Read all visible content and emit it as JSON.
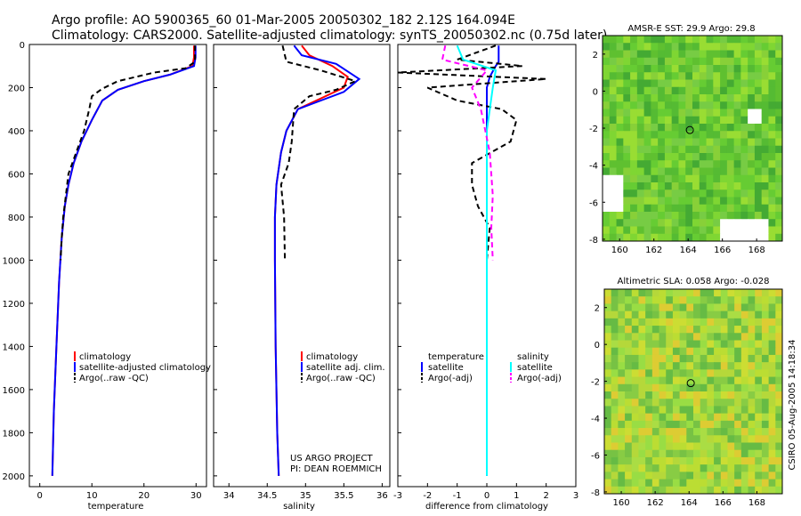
{
  "header": {
    "line1": "Argo profile: AO 5900365_60 01-Mar-2005 20050302_182 2.12S 164.094E",
    "line2": "Climatology: CARS2000. Satellite-adjusted climatology: synTS_20050302.nc (0.75d later)"
  },
  "colors": {
    "climatology": "#ff0000",
    "satellite": "#0000ff",
    "argo": "#000000",
    "salinity_sat": "#00ffff",
    "salinity_argo": "#ff00ff"
  },
  "credits": {
    "project": "US ARGO PROJECT",
    "pi": "PI: DEAN ROEMMICH",
    "stamp": "CSIRO 05-Aug-2005 14:18:34"
  },
  "chart_data": [
    {
      "id": "temperature",
      "type": "line",
      "xlabel": "temperature",
      "xlim": [
        -2,
        32
      ],
      "ylim": [
        0,
        2050
      ],
      "xticks": [
        0,
        10,
        20,
        30
      ],
      "yticks": [
        0,
        200,
        400,
        600,
        800,
        1000,
        1200,
        1400,
        1600,
        1800,
        2000
      ],
      "legend": [
        "climatology",
        "satellite-adjusted climatology",
        "Argo(..raw -QC)"
      ],
      "series": [
        {
          "name": "climatology",
          "style": "solid",
          "color": "#ff0000",
          "points": [
            [
              29.6,
              5
            ],
            [
              29.6,
              60
            ],
            [
              29.3,
              100
            ],
            [
              25,
              140
            ],
            [
              20,
              170
            ],
            [
              15,
              210
            ],
            [
              12,
              260
            ],
            [
              10,
              350
            ],
            [
              8,
              450
            ],
            [
              6.5,
              550
            ],
            [
              5.5,
              650
            ],
            [
              4.8,
              750
            ],
            [
              4.2,
              900
            ],
            [
              3.7,
              1100
            ],
            [
              3.2,
              1400
            ],
            [
              2.7,
              1700
            ],
            [
              2.4,
              2000
            ]
          ]
        },
        {
          "name": "satellite",
          "style": "solid",
          "color": "#0000ff",
          "points": [
            [
              29.9,
              5
            ],
            [
              29.9,
              60
            ],
            [
              29.6,
              100
            ],
            [
              25,
              140
            ],
            [
              20,
              170
            ],
            [
              15,
              210
            ],
            [
              12,
              260
            ],
            [
              10,
              350
            ],
            [
              8,
              450
            ],
            [
              6.5,
              550
            ],
            [
              5.5,
              650
            ],
            [
              4.8,
              750
            ],
            [
              4.2,
              900
            ],
            [
              3.7,
              1100
            ],
            [
              3.2,
              1400
            ],
            [
              2.7,
              1700
            ],
            [
              2.4,
              2000
            ]
          ]
        },
        {
          "name": "argo",
          "style": "dashed",
          "color": "#000000",
          "points": [
            [
              29.8,
              5
            ],
            [
              29.8,
              80
            ],
            [
              28,
              110
            ],
            [
              22,
              130
            ],
            [
              15,
              170
            ],
            [
              12,
              205
            ],
            [
              10,
              240
            ],
            [
              9.5,
              300
            ],
            [
              8.5,
              400
            ],
            [
              7,
              500
            ],
            [
              5.5,
              600
            ],
            [
              5,
              700
            ],
            [
              4.5,
              800
            ],
            [
              4.2,
              900
            ],
            [
              4.0,
              1000
            ]
          ]
        }
      ]
    },
    {
      "id": "salinity",
      "type": "line",
      "xlabel": "salinity",
      "xlim": [
        33.8,
        36.1
      ],
      "ylim": [
        0,
        2050
      ],
      "xticks": [
        34,
        34.5,
        35,
        35.5,
        36
      ],
      "legend": [
        "climatology",
        "satellite adj. clim.",
        "Argo(..raw -QC)"
      ],
      "series": [
        {
          "name": "climatology",
          "style": "solid",
          "color": "#ff0000",
          "points": [
            [
              34.95,
              5
            ],
            [
              35.05,
              50
            ],
            [
              35.35,
              100
            ],
            [
              35.55,
              150
            ],
            [
              35.5,
              200
            ],
            [
              35.2,
              250
            ],
            [
              34.9,
              300
            ],
            [
              34.75,
              400
            ],
            [
              34.68,
              500
            ],
            [
              34.62,
              650
            ],
            [
              34.6,
              800
            ],
            [
              34.6,
              1000
            ],
            [
              34.61,
              1400
            ],
            [
              34.63,
              1800
            ],
            [
              34.65,
              2000
            ]
          ]
        },
        {
          "name": "satellite",
          "style": "solid",
          "color": "#0000ff",
          "points": [
            [
              34.85,
              5
            ],
            [
              34.95,
              50
            ],
            [
              35.4,
              90
            ],
            [
              35.7,
              160
            ],
            [
              35.5,
              220
            ],
            [
              35.2,
              260
            ],
            [
              34.9,
              300
            ],
            [
              34.75,
              400
            ],
            [
              34.68,
              500
            ],
            [
              34.62,
              650
            ],
            [
              34.6,
              800
            ],
            [
              34.6,
              1000
            ],
            [
              34.61,
              1400
            ],
            [
              34.63,
              1800
            ],
            [
              34.65,
              2000
            ]
          ]
        },
        {
          "name": "argo",
          "style": "dashed",
          "color": "#000000",
          "points": [
            [
              34.7,
              5
            ],
            [
              34.75,
              80
            ],
            [
              35.2,
              120
            ],
            [
              35.65,
              170
            ],
            [
              35.4,
              210
            ],
            [
              35.05,
              240
            ],
            [
              34.85,
              300
            ],
            [
              34.82,
              450
            ],
            [
              34.78,
              550
            ],
            [
              34.68,
              650
            ],
            [
              34.72,
              800
            ],
            [
              34.73,
              1000
            ]
          ]
        }
      ]
    },
    {
      "id": "difference",
      "type": "line",
      "xlabel": "difference from climatology",
      "xlim": [
        -3,
        3
      ],
      "ylim": [
        0,
        2050
      ],
      "xticks": [
        -3,
        -2,
        -1,
        0,
        1,
        2,
        3
      ],
      "legend_left_title": "temperature",
      "legend_left": [
        "satellite",
        "Argo(-adj)"
      ],
      "legend_right_title": "salinity",
      "legend_right": [
        "satellite",
        "Argo(-adj)"
      ],
      "series": [
        {
          "name": "temperature-satellite",
          "style": "solid",
          "color": "#0000ff",
          "points": [
            [
              0.4,
              5
            ],
            [
              0.4,
              80
            ],
            [
              0.3,
              100
            ],
            [
              0.1,
              150
            ],
            [
              0,
              200
            ],
            [
              0,
              2000
            ]
          ]
        },
        {
          "name": "temperature-argo",
          "style": "dashed",
          "color": "#000000",
          "points": [
            [
              0.3,
              5
            ],
            [
              -1,
              70
            ],
            [
              1.2,
              100
            ],
            [
              -3,
              130
            ],
            [
              2,
              160
            ],
            [
              -2,
              200
            ],
            [
              -1,
              260
            ],
            [
              0.5,
              300
            ],
            [
              1,
              350
            ],
            [
              0.8,
              450
            ],
            [
              -0.5,
              550
            ],
            [
              -0.5,
              650
            ],
            [
              -0.3,
              750
            ],
            [
              0.1,
              850
            ],
            [
              0,
              1000
            ]
          ]
        },
        {
          "name": "salinity-satellite",
          "style": "solid",
          "color": "#00ffff",
          "points": [
            [
              -1,
              5
            ],
            [
              -0.8,
              70
            ],
            [
              0.3,
              120
            ],
            [
              0.2,
              200
            ],
            [
              0,
              400
            ],
            [
              0,
              2000
            ]
          ]
        },
        {
          "name": "salinity-argo",
          "style": "dashed",
          "color": "#ff00ff",
          "points": [
            [
              -1.4,
              5
            ],
            [
              -1.5,
              70
            ],
            [
              0,
              120
            ],
            [
              -0.5,
              200
            ],
            [
              -0.2,
              300
            ],
            [
              0.1,
              500
            ],
            [
              0.2,
              700
            ],
            [
              0.15,
              850
            ],
            [
              0.2,
              1000
            ]
          ]
        }
      ]
    },
    {
      "id": "sst-map",
      "type": "heatmap",
      "title": "AMSR-E SST: 29.9 Argo: 29.8",
      "xlim": [
        159,
        169.5
      ],
      "ylim": [
        -8.1,
        3
      ],
      "xticks": [
        160,
        162,
        164,
        166,
        168
      ],
      "yticks": [
        2,
        0,
        -2,
        -4,
        -6,
        -8
      ],
      "argo_position": [
        164.1,
        -2.1
      ]
    },
    {
      "id": "sla-map",
      "type": "heatmap",
      "title": "Altimetric SLA: 0.058 Argo: -0.028",
      "xlim": [
        159,
        169.5
      ],
      "ylim": [
        -8.1,
        3
      ],
      "xticks": [
        160,
        162,
        164,
        166,
        168
      ],
      "yticks": [
        2,
        0,
        -2,
        -4,
        -6,
        -8
      ],
      "argo_position": [
        164.1,
        -2.1
      ]
    }
  ]
}
